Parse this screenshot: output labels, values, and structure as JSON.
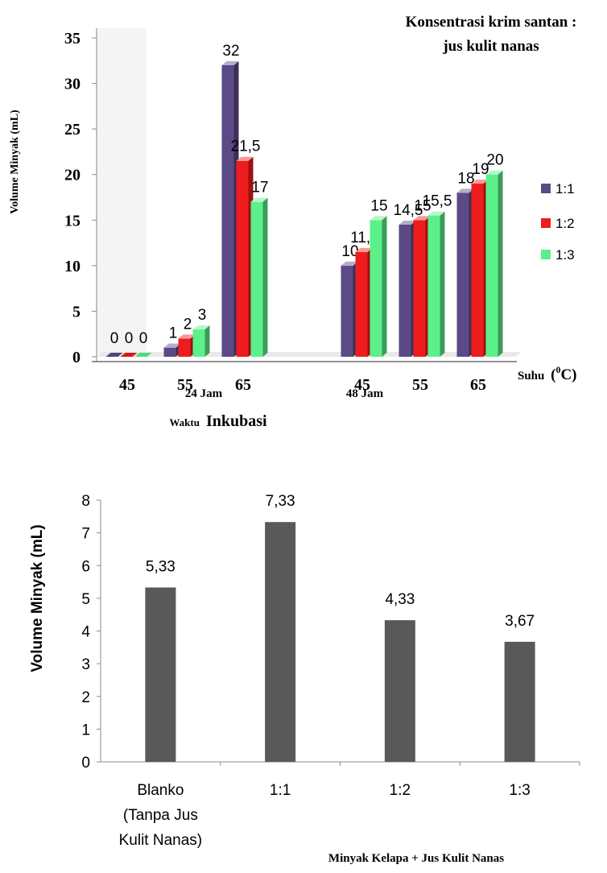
{
  "chart_data": [
    {
      "type": "bar",
      "title": "Konsentrasi krim santan :",
      "title_line2": "jus kulit nanas",
      "ylabel": "Volume Minyak (mL)",
      "ylim": [
        0,
        35
      ],
      "yticks": [
        "0",
        "5",
        "10",
        "15",
        "20",
        "25",
        "30",
        "35"
      ],
      "xlabel": "Waktu",
      "xlabel_big": "Inkubasi",
      "unit_label": "Suhu",
      "unit_sup": "0",
      "unit_c": "C)",
      "groups": [
        {
          "label": "24 Jam",
          "categories": [
            "45",
            "55",
            "65"
          ]
        },
        {
          "label": "48 Jam",
          "categories": [
            "45",
            "55",
            "65"
          ]
        }
      ],
      "series": [
        {
          "name": "1:1",
          "color": "#5b4a86",
          "values": [
            0,
            1,
            32,
            10,
            14.5,
            18
          ],
          "labels": [
            "0",
            "1",
            "32",
            "10",
            "14,5",
            "18"
          ]
        },
        {
          "name": "1:2",
          "color": "#ee1c1c",
          "values": [
            0,
            2,
            21.5,
            11.5,
            15,
            19
          ],
          "labels": [
            "0",
            "2",
            "21,5",
            "11,5",
            "15",
            "19"
          ]
        },
        {
          "name": "1:3",
          "color": "#5cf08a",
          "values": [
            0,
            3,
            17,
            15,
            15.5,
            20
          ],
          "labels": [
            "0",
            "3",
            "17",
            "15",
            "15,5",
            "20"
          ]
        }
      ],
      "legend_position": "right",
      "grid": false
    },
    {
      "type": "bar",
      "ylabel": "Volume Minyak (mL)",
      "xlabel": "Minyak Kelapa + Jus Kulit Nanas",
      "ylim": [
        0,
        8
      ],
      "yticks": [
        "0",
        "1",
        "2",
        "3",
        "4",
        "5",
        "6",
        "7",
        "8"
      ],
      "categories": [
        [
          "Blanko",
          "(Tanpa Jus",
          "Kulit Nanas)"
        ],
        [
          "1:1"
        ],
        [
          "1:2"
        ],
        [
          "1:3"
        ]
      ],
      "values": [
        5.33,
        7.33,
        4.33,
        3.67
      ],
      "labels": [
        "5,33",
        "7,33",
        "4,33",
        "3,67"
      ],
      "color": "#595959",
      "grid": false
    }
  ]
}
